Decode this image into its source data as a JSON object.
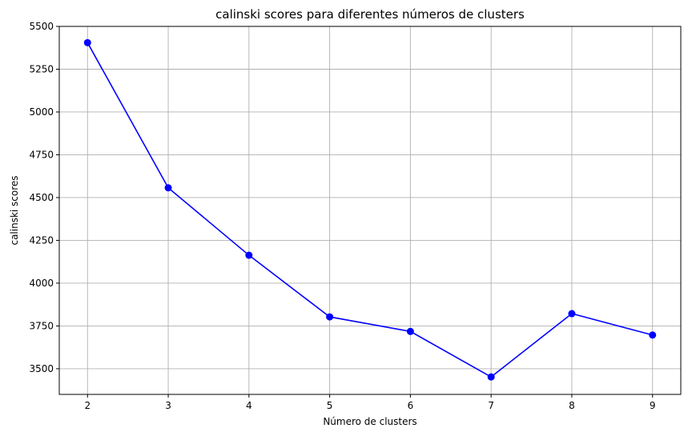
{
  "chart_data": {
    "type": "line",
    "title": "calinski scores para diferentes números de clusters",
    "xlabel": "Número de clusters",
    "ylabel": "calinski scores",
    "x": [
      2,
      3,
      4,
      5,
      6,
      7,
      8,
      9
    ],
    "series": [
      {
        "values": [
          5405,
          4557,
          4163,
          3803,
          3718,
          3452,
          3822,
          3697
        ],
        "color": "#0000ff",
        "marker": "circle"
      }
    ],
    "xlim": [
      1.65,
      9.35
    ],
    "ylim": [
      3350,
      5500
    ],
    "xticks": [
      2,
      3,
      4,
      5,
      6,
      7,
      8,
      9
    ],
    "yticks": [
      3500,
      3750,
      4000,
      4250,
      4500,
      4750,
      5000,
      5250,
      5500
    ],
    "grid": true,
    "grid_color": "#b0b0b0"
  }
}
